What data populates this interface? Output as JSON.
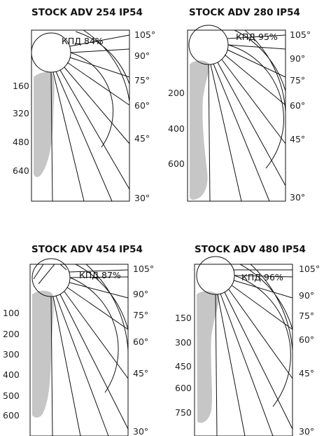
{
  "colors": {
    "line": "#111111",
    "distribution": "#c6c6c6",
    "background": "#ffffff"
  },
  "panels": [
    {
      "title": "STOCK ADV 254 IP54",
      "efficiency": "КПД 84%",
      "angles": [
        "105°",
        "90°",
        "75°",
        "60°",
        "45°",
        "30°"
      ],
      "radial_labels": [
        "160",
        "320",
        "480",
        "640"
      ]
    },
    {
      "title": "STOCK ADV 280 IP54",
      "efficiency": "КПД 95%",
      "angles": [
        "105°",
        "90°",
        "75°",
        "60°",
        "45°",
        "30°"
      ],
      "radial_labels": [
        "200",
        "400",
        "600"
      ]
    },
    {
      "title": "STOCK ADV 454 IP54",
      "efficiency": "КПД 87%",
      "angles": [
        "105°",
        "90°",
        "75°",
        "60°",
        "45°",
        "30°"
      ],
      "radial_labels": [
        "100",
        "200",
        "300",
        "400",
        "500",
        "600"
      ]
    },
    {
      "title": "STOCK ADV 480 IP54",
      "efficiency": "КПД 96%",
      "angles": [
        "105°",
        "90°",
        "75°",
        "60°",
        "45°",
        "30°"
      ],
      "radial_labels": [
        "150",
        "300",
        "450",
        "600",
        "750"
      ]
    }
  ]
}
